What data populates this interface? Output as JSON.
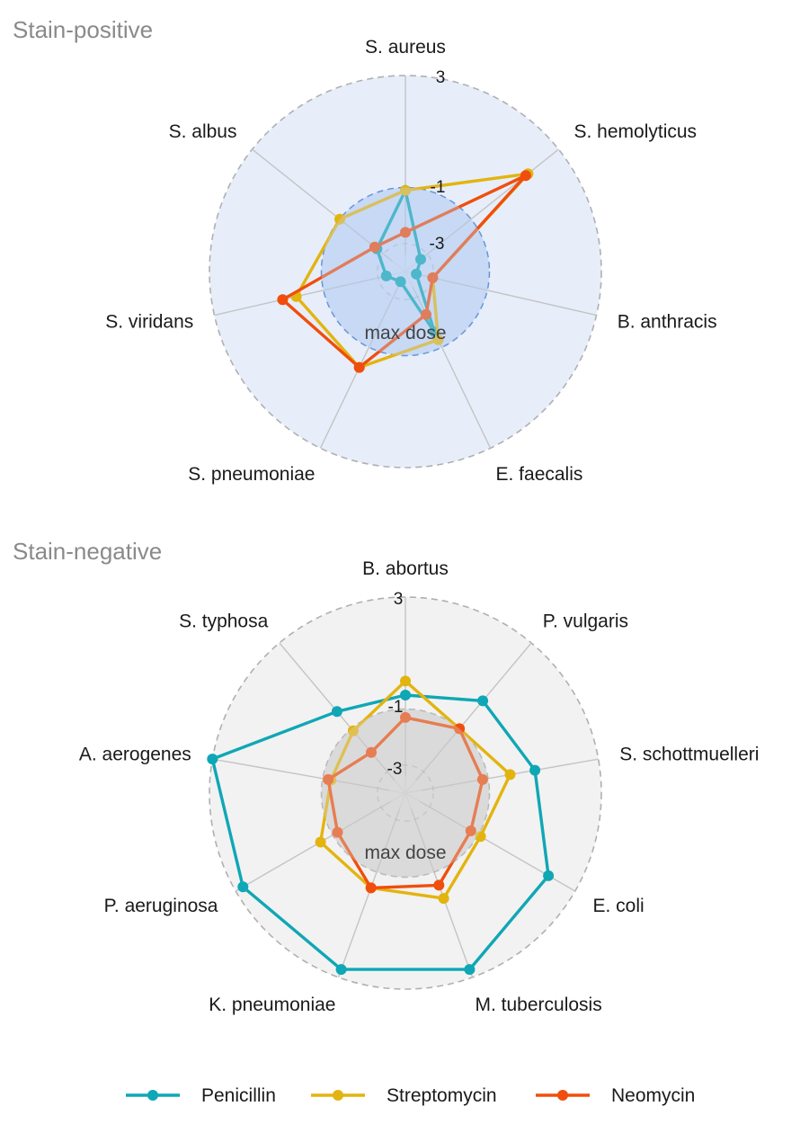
{
  "chart_data": [
    {
      "type": "radar",
      "title": "Stain-positive",
      "categories": [
        "S. aureus",
        "S. hemolyticus",
        "B. anthracis",
        "E. faecalis",
        "S. pneumoniae",
        "S. viridans",
        "S. albus"
      ],
      "radial_ticks": [
        "3",
        "-1",
        "-3"
      ],
      "center_label": "max dose",
      "rlim": [
        -4,
        3
      ],
      "background_color": "#e7eefa",
      "inner_zone_color": "#c3d6f3",
      "inner_zone_edge_color": "#5b8bd6",
      "series": [
        {
          "name": "Penicillin",
          "values": [
            -1.1,
            -3.3,
            -3.6,
            -1.6,
            -3.6,
            -3.3,
            -2.7
          ]
        },
        {
          "name": "Streptomycin",
          "values": [
            -1.1,
            1.6,
            -3.0,
            -1.3,
            -0.2,
            0.0,
            -1.0
          ]
        },
        {
          "name": "Neomycin",
          "values": [
            -2.6,
            1.5,
            -3.0,
            -2.3,
            -0.2,
            0.5,
            -2.6
          ]
        }
      ]
    },
    {
      "type": "radar",
      "title": "Stain-negative",
      "categories": [
        "B. abortus",
        "P. vulgaris",
        "S. schottmuelleri",
        "E. coli",
        "M. tuberculosis",
        "K. pneumoniae",
        "P. aeruginosa",
        "A. aerogenes",
        "S. typhosa"
      ],
      "radial_ticks": [
        "3",
        "-1",
        "-3"
      ],
      "center_label": "max dose",
      "rlim": [
        -4,
        3
      ],
      "background_color": "#f2f2f2",
      "inner_zone_color": "#d6d6d6",
      "inner_zone_edge_color": "#b5b5b5",
      "series": [
        {
          "name": "Penicillin",
          "values": [
            -0.5,
            0.3,
            0.7,
            1.9,
            2.7,
            2.7,
            2.7,
            3.0,
            -0.2
          ]
        },
        {
          "name": "Streptomycin",
          "values": [
            0.0,
            -1.0,
            -0.2,
            -0.9,
            0.0,
            -0.4,
            -0.5,
            -1.3,
            -1.1
          ]
        },
        {
          "name": "Neomycin",
          "values": [
            -1.3,
            -1.0,
            -1.2,
            -1.3,
            -0.5,
            -0.4,
            -1.2,
            -1.2,
            -2.1
          ]
        }
      ]
    }
  ],
  "legend": {
    "items": [
      {
        "name": "Penicillin",
        "color": "#0fa7b5"
      },
      {
        "name": "Streptomycin",
        "color": "#e3b40f"
      },
      {
        "name": "Neomycin",
        "color": "#f04e0c"
      }
    ]
  }
}
